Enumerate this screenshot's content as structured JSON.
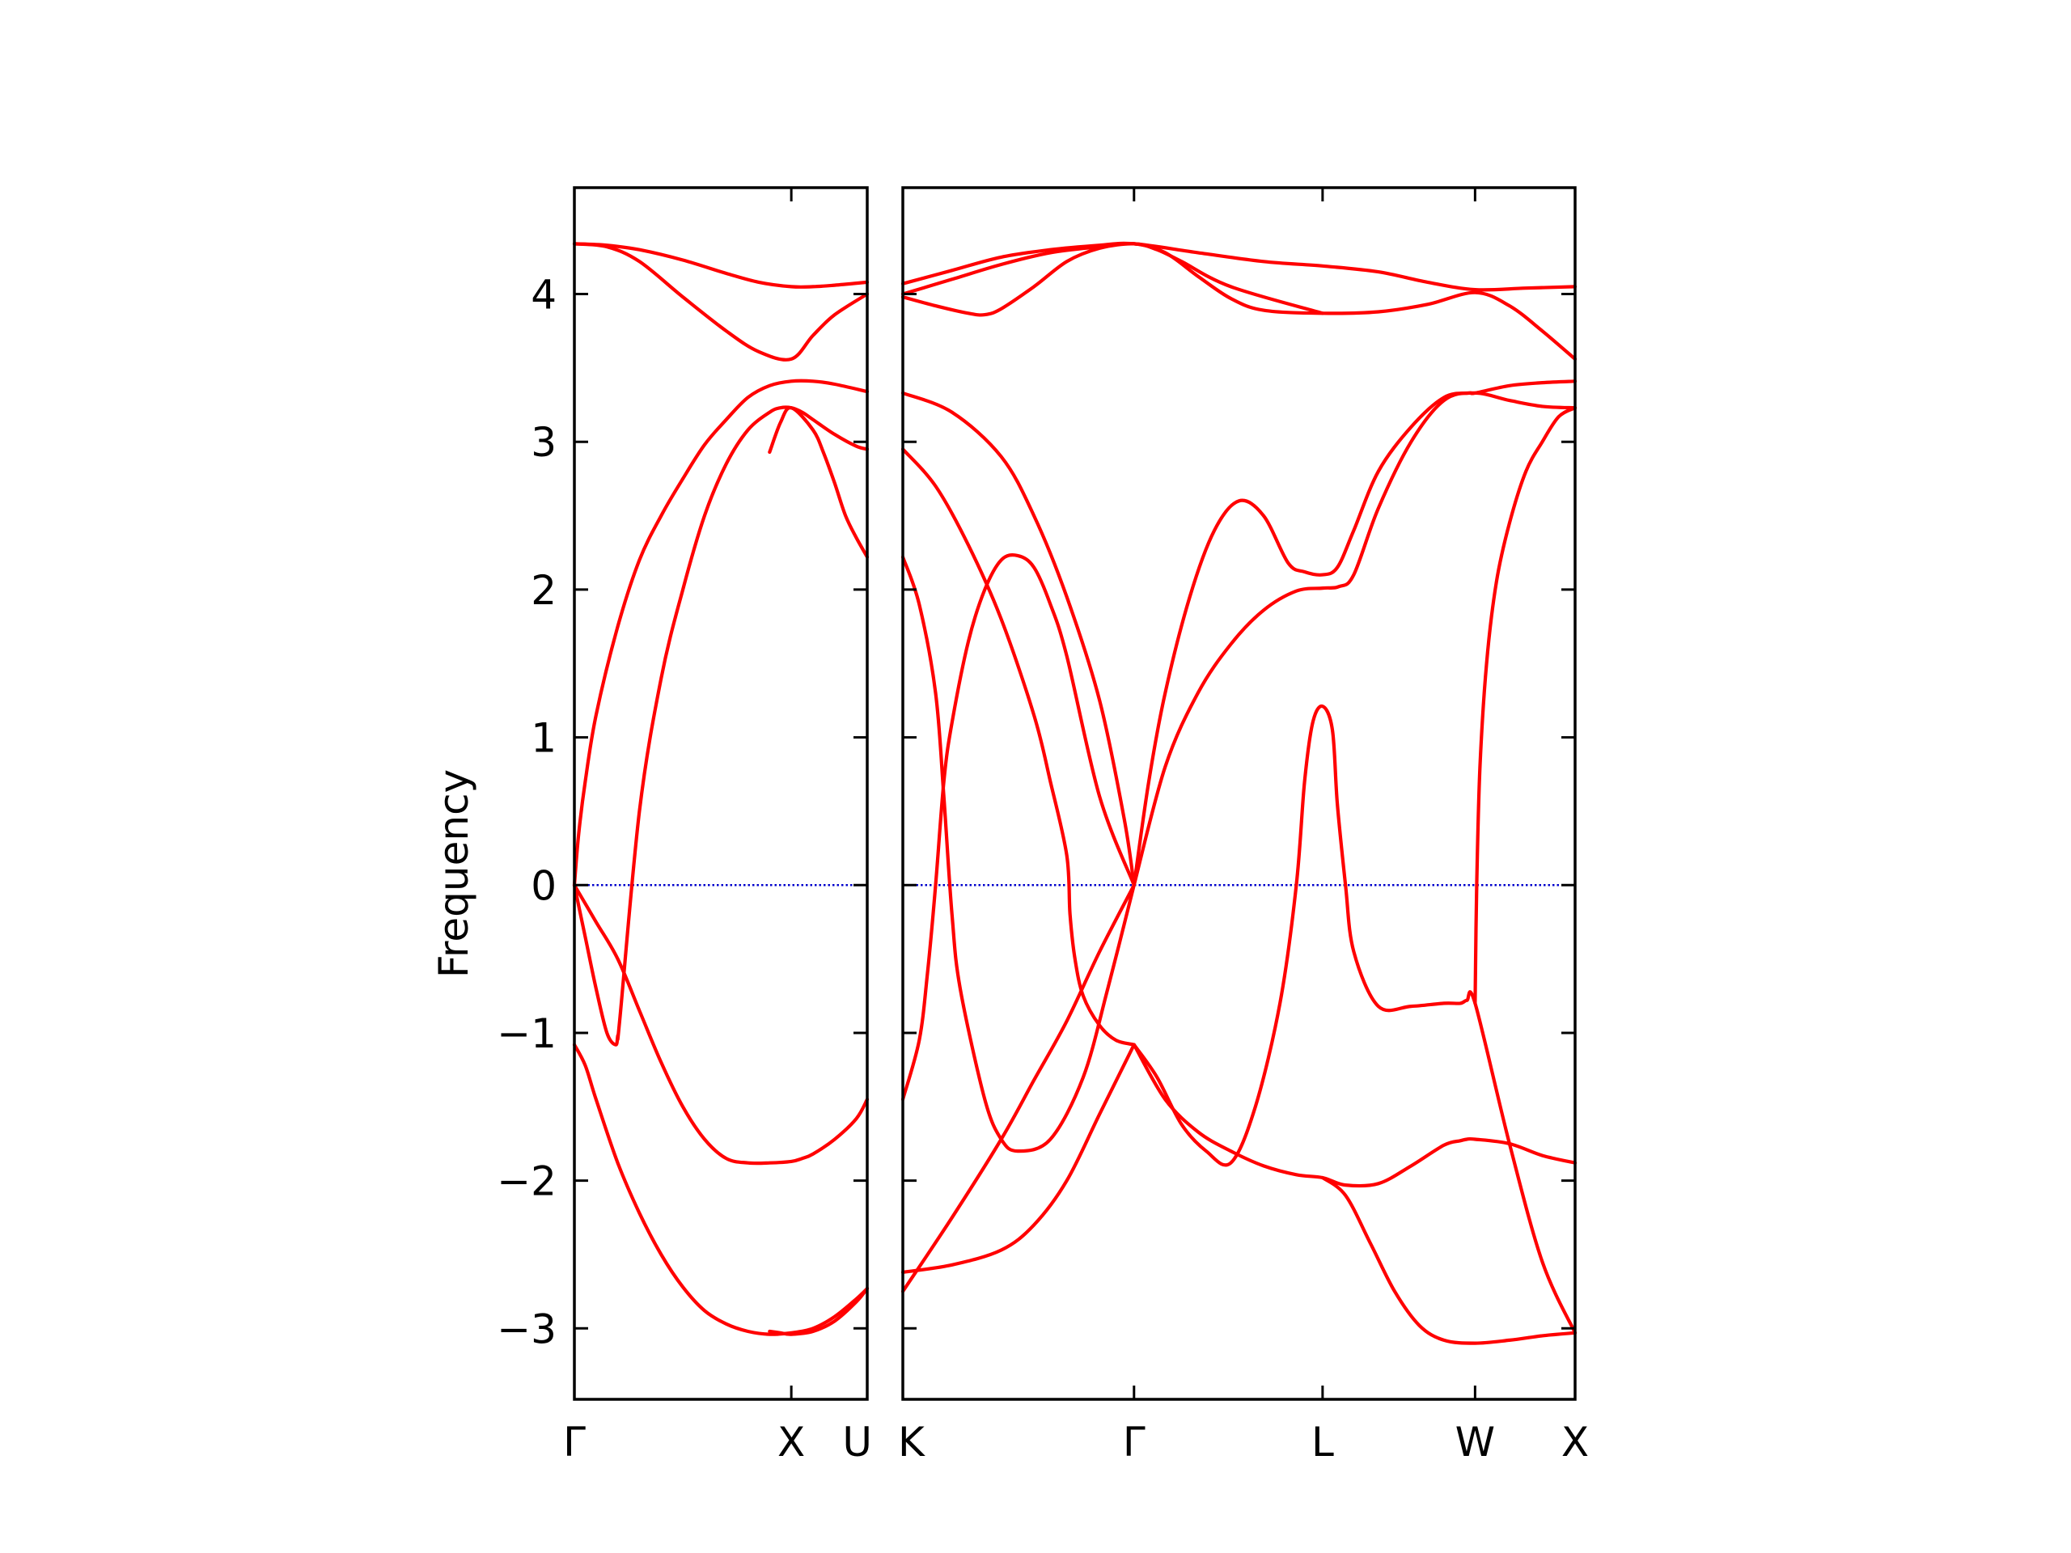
{
  "chart_data": {
    "type": "line",
    "title": "",
    "ylabel": "Frequency",
    "ylim": [
      -3.48,
      4.72
    ],
    "yticks": [
      -3,
      -2,
      -1,
      0,
      1,
      2,
      3,
      4
    ],
    "ytick_labels": [
      "−3",
      "−2",
      "−1",
      "0",
      "1",
      "2",
      "3",
      "4"
    ],
    "grid": false,
    "legend": "none",
    "colors": {
      "bands": "#ff0000",
      "zero_line": "#0000cc",
      "frame": "#000000"
    },
    "zero_line_style": "dotted",
    "panels": [
      {
        "name": "left",
        "path_labels": [
          "Γ",
          "X",
          "U"
        ],
        "label_positions": [
          0,
          1,
          1.35
        ],
        "xlim": [
          0,
          1.35
        ],
        "series": [
          {
            "x": [
              0,
              0.15,
              0.3,
              0.5,
              0.7,
              0.85,
              1.0,
              1.1,
              1.2,
              1.35
            ],
            "y": [
              4.34,
              4.33,
              4.3,
              4.23,
              4.14,
              4.08,
              4.05,
              4.05,
              4.06,
              4.08
            ]
          },
          {
            "x": [
              0,
              0.15,
              0.3,
              0.5,
              0.7,
              0.85,
              1.0,
              1.1,
              1.2,
              1.35
            ],
            "y": [
              4.34,
              4.32,
              4.22,
              3.98,
              3.75,
              3.61,
              3.56,
              3.72,
              3.86,
              4.0
            ]
          },
          {
            "x": [
              0,
              0.02,
              0.05,
              0.1,
              0.2,
              0.3,
              0.4,
              0.5,
              0.6,
              0.7,
              0.8,
              0.9,
              1.0,
              1.1,
              1.2,
              1.35
            ],
            "y": [
              0,
              0.35,
              0.7,
              1.15,
              1.75,
              2.2,
              2.5,
              2.75,
              2.98,
              3.15,
              3.3,
              3.38,
              3.41,
              3.41,
              3.39,
              3.34
            ]
          },
          {
            "x": [
              0,
              0.05,
              0.1,
              0.15,
              0.19,
              0.2,
              0.21,
              0.3,
              0.4,
              0.5,
              0.6,
              0.7,
              0.8,
              0.9,
              0.95,
              1.0,
              1.05,
              1.1,
              1.2,
              1.3,
              1.35
            ],
            "y": [
              0,
              -0.35,
              -0.7,
              -1.0,
              -1.08,
              -1.02,
              -0.9,
              0.5,
              1.4,
              2.0,
              2.5,
              2.85,
              3.08,
              3.2,
              3.23,
              3.23,
              3.2,
              3.15,
              3.05,
              2.97,
              2.95
            ]
          },
          {
            "x": [
              0,
              0.1,
              0.2,
              0.3,
              0.4,
              0.5,
              0.6,
              0.7,
              0.8,
              0.9,
              1.0,
              1.05,
              1.1,
              1.2,
              1.3,
              1.35
            ],
            "y": [
              0,
              -0.25,
              -0.5,
              -0.85,
              -1.2,
              -1.5,
              -1.72,
              -1.85,
              -1.88,
              -1.88,
              -1.87,
              -1.85,
              -1.82,
              -1.72,
              -1.58,
              -1.45
            ]
          },
          {
            "x": [
              0,
              0.05,
              0.1,
              0.2,
              0.3,
              0.4,
              0.5,
              0.6,
              0.7,
              0.8,
              0.9,
              1.0,
              1.1,
              1.2,
              1.3,
              1.35
            ],
            "y": [
              -1.08,
              -1.22,
              -1.45,
              -1.88,
              -2.22,
              -2.5,
              -2.72,
              -2.88,
              -2.97,
              -3.02,
              -3.04,
              -3.03,
              -3.0,
              -2.92,
              -2.8,
              -2.73
            ]
          },
          {
            "x": [
              0.9,
              0.95,
              1.0,
              1.1,
              1.15,
              1.2,
              1.25,
              1.3,
              1.35
            ],
            "y": [
              2.93,
              3.13,
              3.23,
              3.08,
              2.92,
              2.72,
              2.5,
              2.35,
              2.22
            ]
          },
          {
            "x": [
              0.9,
              0.95,
              1.0,
              1.1,
              1.2,
              1.3,
              1.35
            ],
            "y": [
              -3.02,
              -3.03,
              -3.04,
              -3.02,
              -2.95,
              -2.82,
              -2.73
            ]
          }
        ]
      },
      {
        "name": "right",
        "path_labels": [
          "K",
          "Γ",
          "L",
          "W",
          "X"
        ],
        "label_positions": [
          0,
          1.41,
          2.56,
          3.49,
          4.1
        ],
        "xlim": [
          0,
          4.1
        ],
        "series": [
          {
            "x": [
              0,
              0.3,
              0.6,
              0.9,
              1.2,
              1.41,
              1.8,
              2.2,
              2.56,
              2.9,
              3.2,
              3.49,
              3.8,
              4.1
            ],
            "y": [
              4.07,
              4.16,
              4.25,
              4.3,
              4.33,
              4.34,
              4.28,
              4.22,
              4.19,
              4.15,
              4.08,
              4.03,
              4.04,
              4.05
            ]
          },
          {
            "x": [
              0,
              0.3,
              0.6,
              0.9,
              1.2,
              1.41,
              1.6,
              1.8,
              2.0,
              2.2,
              2.56,
              2.9,
              3.2,
              3.49,
              3.7,
              3.9,
              4.1
            ],
            "y": [
              4.0,
              4.1,
              4.2,
              4.28,
              4.32,
              4.34,
              4.28,
              4.12,
              3.97,
              3.89,
              3.87,
              3.88,
              3.93,
              4.01,
              3.92,
              3.75,
              3.56
            ]
          },
          {
            "x": [
              0,
              0.2,
              0.4,
              0.5,
              0.6,
              0.8,
              1.0,
              1.2,
              1.41,
              1.55,
              1.7,
              2.0,
              2.56
            ],
            "y": [
              3.98,
              3.92,
              3.87,
              3.86,
              3.9,
              4.05,
              4.22,
              4.31,
              4.34,
              4.3,
              4.22,
              4.05,
              3.87
            ]
          },
          {
            "x": [
              0,
              0.3,
              0.6,
              0.8,
              1.0,
              1.2,
              1.35,
              1.41
            ],
            "y": [
              3.33,
              3.2,
              2.9,
              2.5,
              1.95,
              1.25,
              0.45,
              0
            ]
          },
          {
            "x": [
              0,
              0.2,
              0.4,
              0.6,
              0.8,
              0.9,
              1.0,
              1.02,
              1.05,
              1.1,
              1.2,
              1.3,
              1.41
            ],
            "y": [
              2.95,
              2.7,
              2.3,
              1.8,
              1.15,
              0.7,
              0.2,
              -0.2,
              -0.5,
              -0.75,
              -0.95,
              -1.05,
              -1.08
            ]
          },
          {
            "x": [
              0,
              0.1,
              0.2,
              0.25,
              0.3,
              0.35,
              0.5,
              0.6,
              0.7,
              0.9,
              1.1,
              1.25,
              1.41
            ],
            "y": [
              2.22,
              1.9,
              1.3,
              0.6,
              -0.2,
              -0.7,
              -1.45,
              -1.72,
              -1.8,
              -1.72,
              -1.3,
              -0.7,
              0
            ]
          },
          {
            "x": [
              0,
              0.1,
              0.15,
              0.2,
              0.25,
              0.3,
              0.4,
              0.5,
              0.6,
              0.7,
              0.8,
              0.9,
              1.0,
              1.2,
              1.41
            ],
            "y": [
              -1.45,
              -1.05,
              -0.6,
              0,
              0.7,
              1.1,
              1.65,
              2.0,
              2.2,
              2.23,
              2.15,
              1.9,
              1.55,
              0.6,
              0
            ]
          },
          {
            "x": [
              0,
              0.3,
              0.6,
              0.8,
              1.0,
              1.2,
              1.41
            ],
            "y": [
              -2.62,
              -2.57,
              -2.47,
              -2.3,
              -2.0,
              -1.55,
              -1.08
            ]
          },
          {
            "x": [
              0,
              0.3,
              0.6,
              0.8,
              1.0,
              1.2,
              1.41
            ],
            "y": [
              -2.75,
              -2.25,
              -1.72,
              -1.32,
              -0.92,
              -0.45,
              0
            ]
          },
          {
            "x": [
              1.41,
              1.5,
              1.6,
              1.75,
              1.9,
              2.05,
              2.2,
              2.35,
              2.45,
              2.56,
              2.65,
              2.75,
              2.9,
              3.1,
              3.3,
              3.45,
              3.49,
              3.7,
              3.9,
              4.1
            ],
            "y": [
              0,
              0.7,
              1.3,
              1.95,
              2.4,
              2.6,
              2.5,
              2.18,
              2.12,
              2.1,
              2.15,
              2.4,
              2.8,
              3.1,
              3.3,
              3.33,
              3.33,
              3.38,
              3.4,
              3.41
            ]
          },
          {
            "x": [
              1.41,
              1.6,
              1.8,
              2.0,
              2.2,
              2.4,
              2.56,
              2.66,
              2.75,
              2.9,
              3.1,
              3.3,
              3.49,
              3.7,
              3.9,
              4.1
            ],
            "y": [
              0,
              0.8,
              1.3,
              1.63,
              1.86,
              1.99,
              2.01,
              2.02,
              2.1,
              2.55,
              3.0,
              3.28,
              3.33,
              3.28,
              3.24,
              3.23
            ]
          },
          {
            "x": [
              1.41,
              1.55,
              1.7,
              1.85,
              2.0,
              2.15,
              2.3,
              2.4,
              2.45,
              2.5,
              2.56,
              2.62,
              2.65,
              2.7,
              2.75,
              2.9,
              3.1,
              3.3,
              3.4,
              3.44,
              3.49,
              3.7,
              3.9,
              4.1
            ],
            "y": [
              -1.08,
              -1.3,
              -1.62,
              -1.8,
              -1.88,
              -1.5,
              -0.8,
              0.0,
              0.7,
              1.1,
              1.21,
              1.05,
              0.55,
              0,
              -0.45,
              -0.82,
              -0.82,
              -0.8,
              -0.8,
              -0.78,
              -0.8,
              -1.75,
              -2.55,
              -3.03
            ]
          },
          {
            "x": [
              1.41,
              1.6,
              1.8,
              2.0,
              2.2,
              2.4,
              2.56,
              2.7,
              2.9,
              3.1,
              3.3,
              3.4,
              3.44,
              3.49,
              3.7,
              3.9,
              4.1
            ],
            "y": [
              -1.08,
              -1.45,
              -1.67,
              -1.8,
              -1.9,
              -1.96,
              -1.98,
              -2.03,
              -2.02,
              -1.9,
              -1.76,
              -1.73,
              -1.72,
              -1.72,
              -1.75,
              -1.83,
              -1.88
            ]
          },
          {
            "x": [
              2.56,
              2.7,
              2.85,
              3.0,
              3.15,
              3.3,
              3.49,
              3.7,
              3.9,
              4.1
            ],
            "y": [
              -1.98,
              -2.1,
              -2.42,
              -2.75,
              -2.98,
              -3.08,
              -3.1,
              -3.08,
              -3.05,
              -3.03
            ]
          },
          {
            "x": [
              3.49,
              3.5,
              3.52,
              3.56,
              3.62,
              3.7,
              3.8,
              3.9,
              4.0,
              4.1
            ],
            "y": [
              -0.8,
              0.0,
              0.8,
              1.5,
              2.05,
              2.45,
              2.8,
              3.0,
              3.17,
              3.23
            ]
          }
        ]
      }
    ]
  }
}
